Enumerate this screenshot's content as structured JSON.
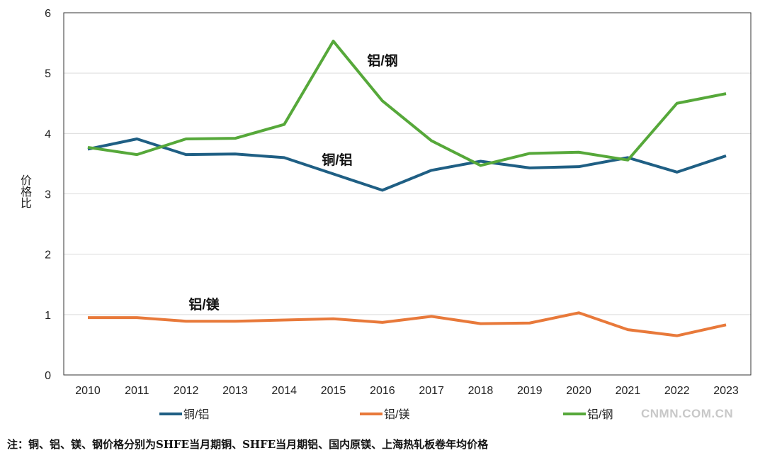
{
  "chart_data": {
    "type": "line",
    "title": "",
    "xlabel": "",
    "ylabel": "价格比",
    "ylim": [
      0,
      6
    ],
    "yticks": [
      "0",
      "1",
      "2",
      "3",
      "4",
      "5",
      "6"
    ],
    "x": [
      "2010",
      "2011",
      "2012",
      "2013",
      "2014",
      "2015",
      "2016",
      "2017",
      "2018",
      "2019",
      "2020",
      "2021",
      "2022",
      "2023"
    ],
    "grid": true,
    "legend_position": "bottom",
    "series": [
      {
        "name": "铜/铝",
        "color": "#1f5f84",
        "values": [
          3.74,
          3.91,
          3.65,
          3.66,
          3.6,
          3.33,
          3.06,
          3.39,
          3.54,
          3.43,
          3.45,
          3.6,
          3.36,
          3.63
        ]
      },
      {
        "name": "铝/镁",
        "color": "#e8793a",
        "values": [
          0.95,
          0.95,
          0.89,
          0.89,
          0.91,
          0.93,
          0.87,
          0.97,
          0.85,
          0.86,
          1.03,
          0.75,
          0.65,
          0.83
        ]
      },
      {
        "name": "铝/钢",
        "color": "#56a83a",
        "values": [
          3.77,
          3.65,
          3.91,
          3.92,
          4.15,
          5.53,
          4.54,
          3.88,
          3.47,
          3.67,
          3.69,
          3.56,
          4.5,
          4.66
        ]
      }
    ],
    "annotations": [
      {
        "text": "铝/钢",
        "x": "2015",
        "y": 5.2
      },
      {
        "text": "铜/铝",
        "x": "2015",
        "y": 3.6
      },
      {
        "text": "铝/镁",
        "x": "2012",
        "y": 1.2
      }
    ]
  },
  "watermark": "CNMN.COM.CN",
  "footnote": "注：铜、铝、镁、钢价格分别为SHFE当月期铜、SHFE当月期铝、国内原镁、上海热轧板卷年均价格"
}
